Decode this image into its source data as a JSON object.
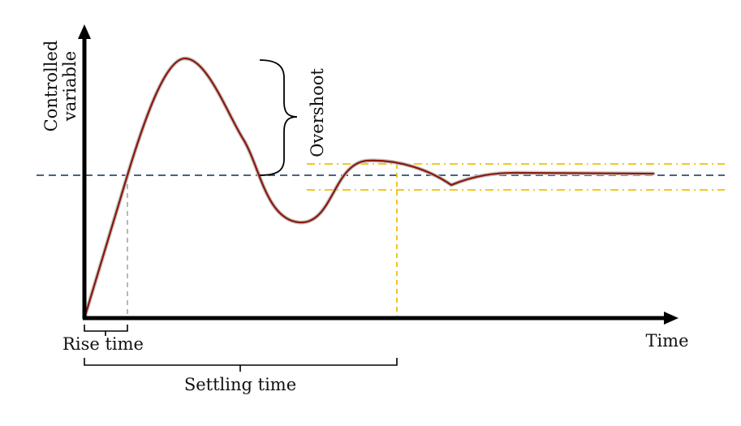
{
  "diagram": {
    "labels": {
      "y_axis_line1": "Controlled",
      "y_axis_line2": "variable",
      "x_axis": "Time",
      "overshoot": "Overshoot",
      "rise_time": "Rise time",
      "settling_time": "Settling time"
    },
    "colors": {
      "response_curve": "#8b1a0c",
      "response_halo": "#c9c9c9",
      "setpoint_line": "#2f4f6f",
      "tolerance_band": "#f2c000",
      "rise_guide": "#9a9a9a",
      "axes": "#000000"
    }
  }
}
